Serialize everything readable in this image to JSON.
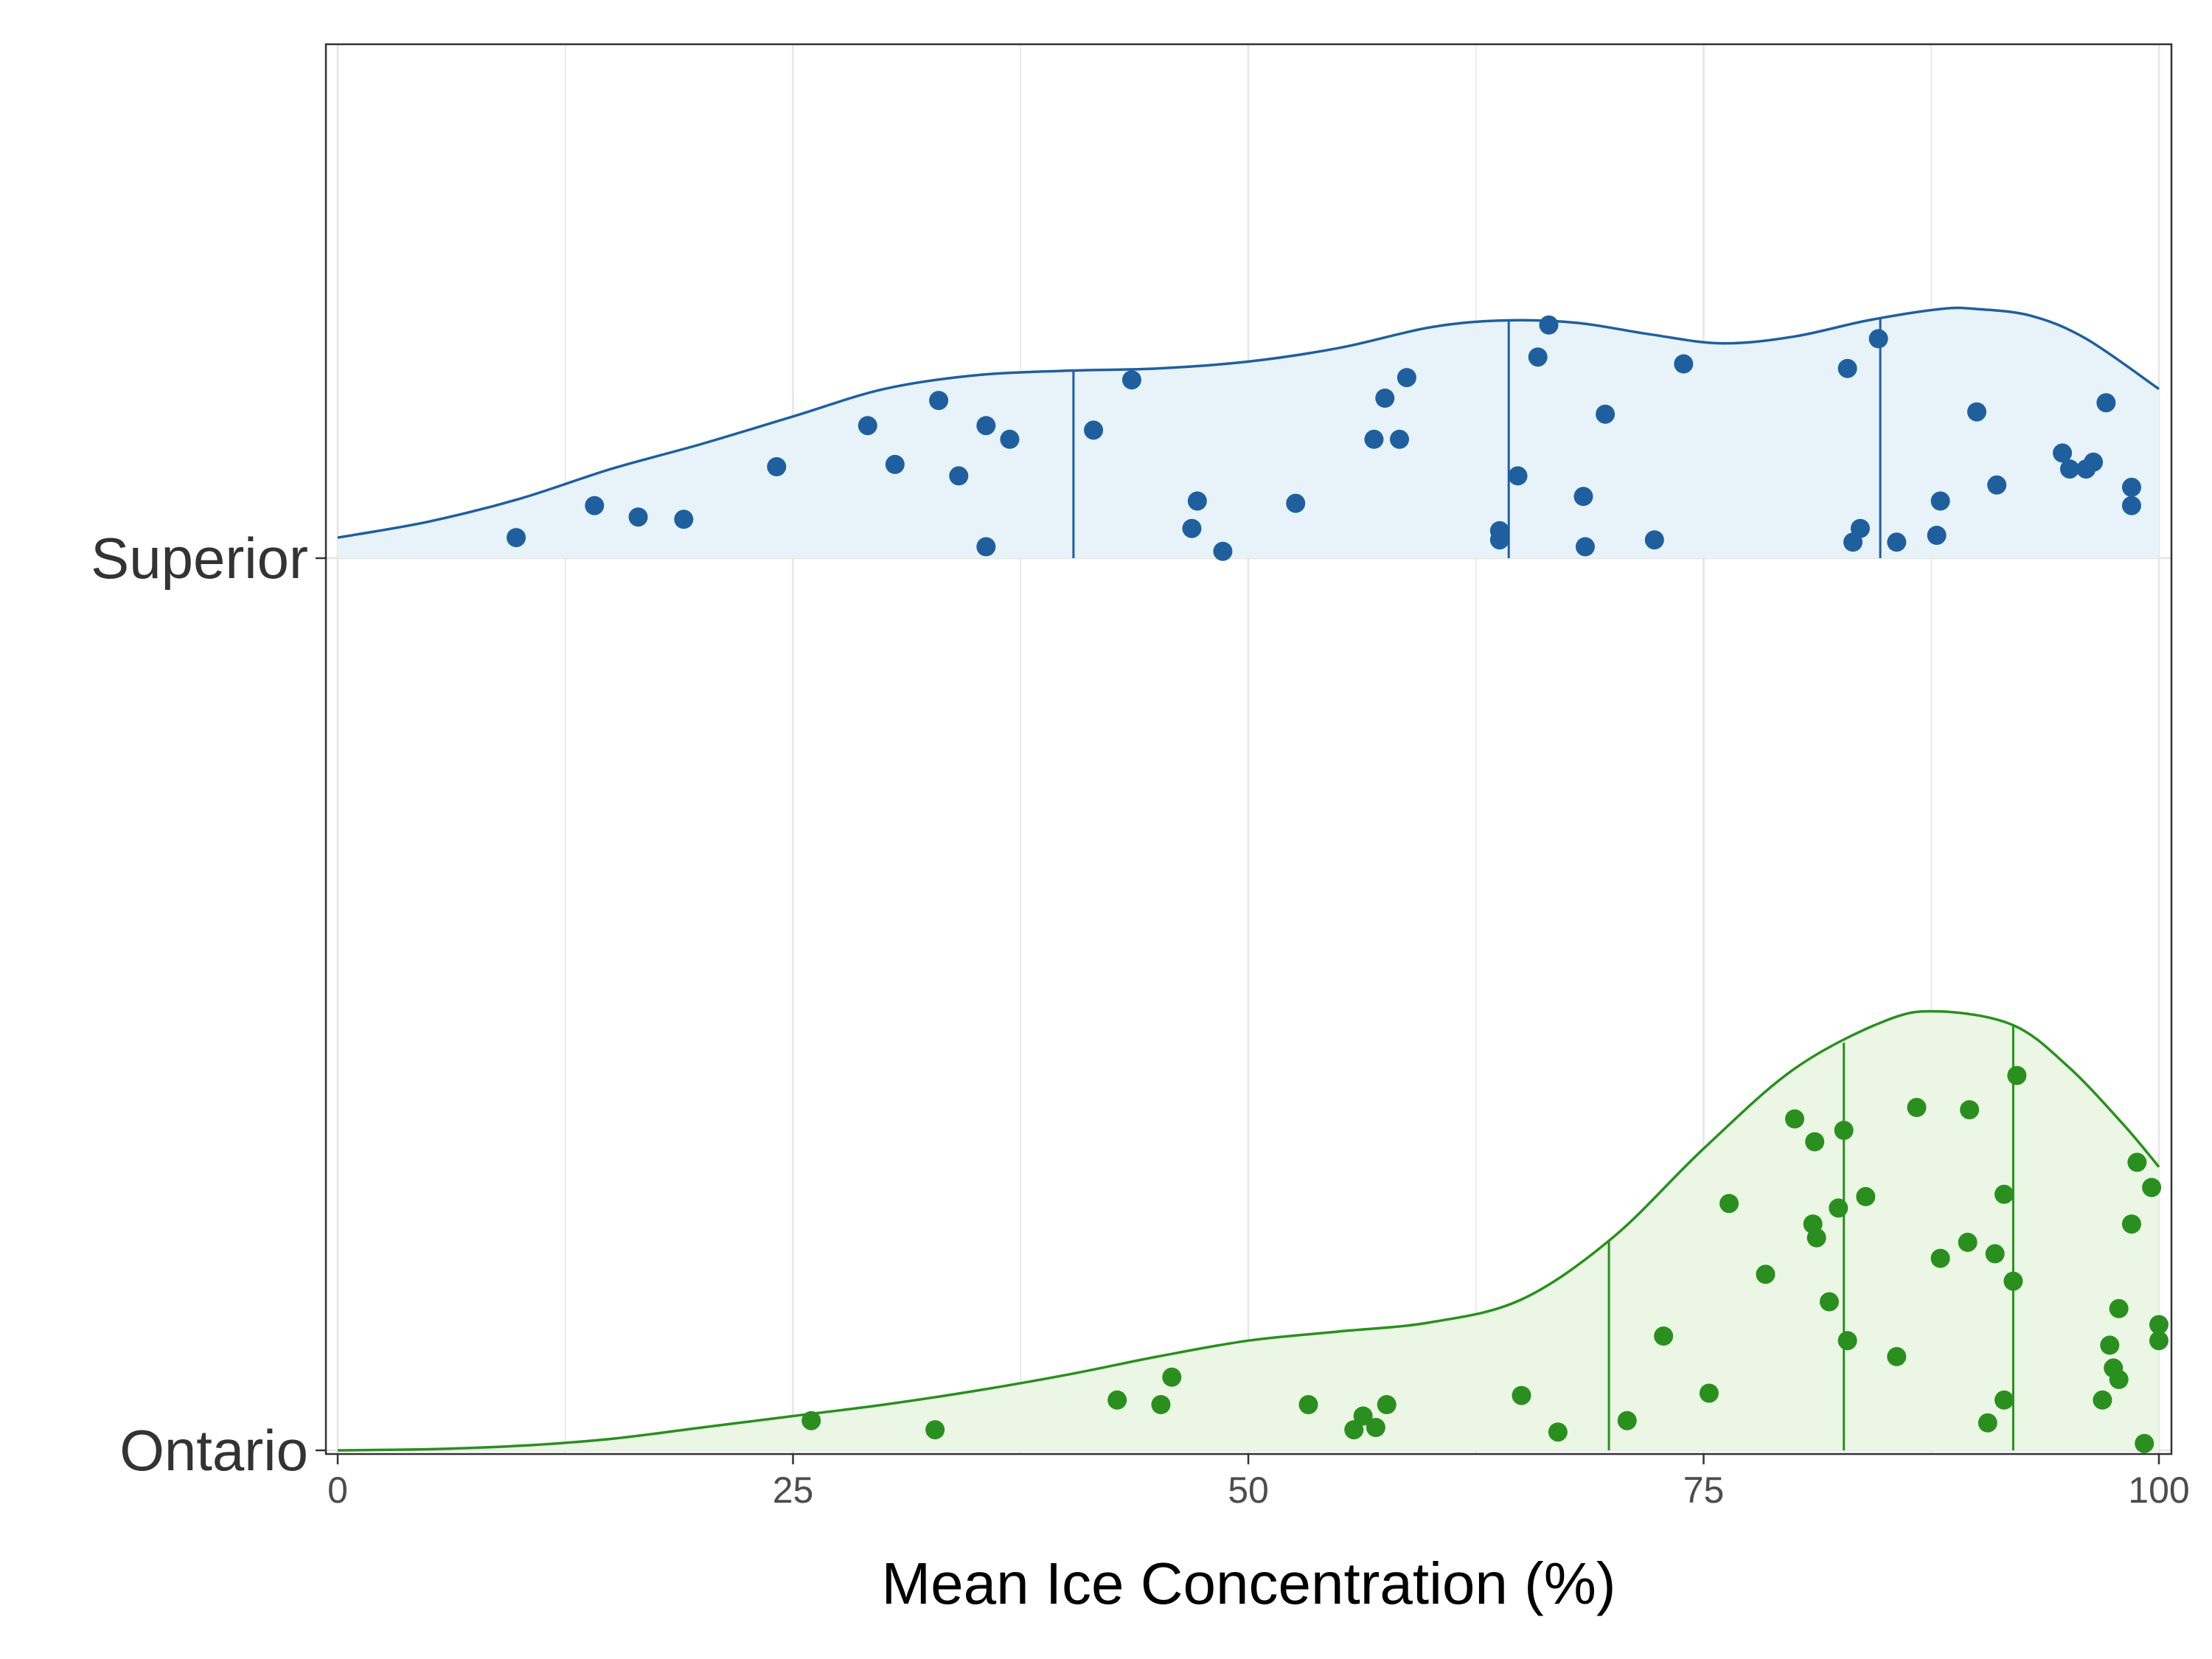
{
  "chart_data": {
    "type": "ridgeline-density-jitter",
    "xlabel": "Mean Ice Concentration (%)",
    "ylabel": "",
    "xlim": [
      0,
      100
    ],
    "x_ticks": [
      0,
      25,
      50,
      75,
      100
    ],
    "x_tick_labels": [
      "0",
      "25",
      "50",
      "75",
      "100"
    ],
    "grid": true,
    "legend": "none",
    "categories": [
      "Superior",
      "Ontario"
    ],
    "series": [
      {
        "name": "Superior",
        "color": "#1f5f9e",
        "fill": "#e8f2f9",
        "density_curve": [
          [
            0,
            0.09
          ],
          [
            5,
            0.16
          ],
          [
            10,
            0.26
          ],
          [
            15,
            0.39
          ],
          [
            20,
            0.5
          ],
          [
            25,
            0.62
          ],
          [
            30,
            0.74
          ],
          [
            35,
            0.8
          ],
          [
            40,
            0.82
          ],
          [
            45,
            0.83
          ],
          [
            50,
            0.86
          ],
          [
            55,
            0.92
          ],
          [
            60,
            1.01
          ],
          [
            64,
            1.04
          ],
          [
            68,
            1.03
          ],
          [
            72,
            0.98
          ],
          [
            76,
            0.94
          ],
          [
            80,
            0.97
          ],
          [
            84,
            1.04
          ],
          [
            88,
            1.09
          ],
          [
            90,
            1.09
          ],
          [
            93,
            1.06
          ],
          [
            96,
            0.96
          ],
          [
            100,
            0.74
          ]
        ],
        "quantiles": [
          40.4,
          64.3,
          84.7
        ],
        "points": [
          [
            9.8,
            0.09
          ],
          [
            14.1,
            0.23
          ],
          [
            16.5,
            0.18
          ],
          [
            19,
            0.17
          ],
          [
            24.1,
            0.4
          ],
          [
            29.1,
            0.58
          ],
          [
            30.6,
            0.41
          ],
          [
            33,
            0.69
          ],
          [
            34.1,
            0.36
          ],
          [
            35.6,
            0.58
          ],
          [
            35.6,
            0.05
          ],
          [
            36.9,
            0.52
          ],
          [
            41.5,
            0.56
          ],
          [
            43.6,
            0.78
          ],
          [
            46.9,
            0.13
          ],
          [
            47.2,
            0.25
          ],
          [
            48.6,
            0.03
          ],
          [
            52.6,
            0.24
          ],
          [
            56.9,
            0.52
          ],
          [
            57.5,
            0.7
          ],
          [
            58.3,
            0.52
          ],
          [
            58.7,
            0.79
          ],
          [
            63.8,
            0.12
          ],
          [
            63.8,
            0.08
          ],
          [
            64.8,
            0.36
          ],
          [
            65.9,
            0.88
          ],
          [
            66.5,
            1.02
          ],
          [
            68.4,
            0.27
          ],
          [
            68.5,
            0.05
          ],
          [
            69.6,
            0.63
          ],
          [
            72.3,
            0.08
          ],
          [
            73.9,
            0.85
          ],
          [
            82.9,
            0.83
          ],
          [
            83.2,
            0.07
          ],
          [
            83.6,
            0.13
          ],
          [
            84.6,
            0.96
          ],
          [
            85.6,
            0.07
          ],
          [
            87.8,
            0.1
          ],
          [
            88,
            0.25
          ],
          [
            90.0,
            0.64
          ],
          [
            91.1,
            0.32
          ],
          [
            94.7,
            0.46
          ],
          [
            95.1,
            0.39
          ],
          [
            96,
            0.39
          ],
          [
            96.4,
            0.42
          ],
          [
            97.1,
            0.68
          ],
          [
            98.5,
            0.31
          ],
          [
            98.5,
            0.23
          ]
        ]
      },
      {
        "name": "Ontario",
        "color": "#2a8f1f",
        "fill": "#ebf7e4",
        "density_curve": [
          [
            0,
            0.0
          ],
          [
            5,
            0.005
          ],
          [
            10,
            0.02
          ],
          [
            15,
            0.05
          ],
          [
            20,
            0.1
          ],
          [
            25,
            0.15
          ],
          [
            30,
            0.2
          ],
          [
            35,
            0.26
          ],
          [
            40,
            0.33
          ],
          [
            45,
            0.41
          ],
          [
            50,
            0.48
          ],
          [
            55,
            0.52
          ],
          [
            60,
            0.56
          ],
          [
            65,
            0.66
          ],
          [
            70,
            0.93
          ],
          [
            75,
            1.32
          ],
          [
            80,
            1.67
          ],
          [
            85,
            1.88
          ],
          [
            88,
            1.92
          ],
          [
            92,
            1.86
          ],
          [
            95,
            1.68
          ],
          [
            98,
            1.43
          ],
          [
            100,
            1.24
          ]
        ],
        "quantiles": [
          69.8,
          82.7,
          92.0
        ],
        "points": [
          [
            26,
            0.13
          ],
          [
            32.8,
            0.09
          ],
          [
            42.8,
            0.22
          ],
          [
            45.2,
            0.2
          ],
          [
            45.8,
            0.32
          ],
          [
            53.3,
            0.2
          ],
          [
            55.8,
            0.09
          ],
          [
            56.3,
            0.15
          ],
          [
            57.0,
            0.1
          ],
          [
            57.6,
            0.2
          ],
          [
            65.0,
            0.24
          ],
          [
            67.0,
            0.08
          ],
          [
            70.8,
            0.13
          ],
          [
            72.8,
            0.5
          ],
          [
            75.3,
            0.25
          ],
          [
            76.4,
            1.08
          ],
          [
            78.4,
            0.77
          ],
          [
            80,
            1.45
          ],
          [
            81.0,
            0.99
          ],
          [
            81.1,
            1.35
          ],
          [
            81.2,
            0.93
          ],
          [
            81.9,
            0.65
          ],
          [
            82.4,
            1.06
          ],
          [
            82.7,
            1.4
          ],
          [
            82.9,
            0.48
          ],
          [
            83.9,
            1.11
          ],
          [
            85.6,
            0.41
          ],
          [
            86.7,
            1.5
          ],
          [
            88.0,
            0.84
          ],
          [
            89.5,
            0.91
          ],
          [
            89.6,
            1.49
          ],
          [
            90.6,
            0.12
          ],
          [
            91.0,
            0.86
          ],
          [
            91.5,
            0.22
          ],
          [
            91.5,
            1.12
          ],
          [
            92.0,
            0.74
          ],
          [
            92.2,
            1.64
          ],
          [
            96.9,
            0.22
          ],
          [
            97.3,
            0.46
          ],
          [
            97.5,
            0.36
          ],
          [
            97.8,
            0.31
          ],
          [
            97.8,
            0.62
          ],
          [
            98.5,
            0.99
          ],
          [
            98.8,
            1.26
          ],
          [
            99.2,
            0.03
          ],
          [
            99.6,
            1.15
          ],
          [
            100,
            0.55
          ],
          [
            100,
            0.48
          ]
        ]
      }
    ]
  }
}
